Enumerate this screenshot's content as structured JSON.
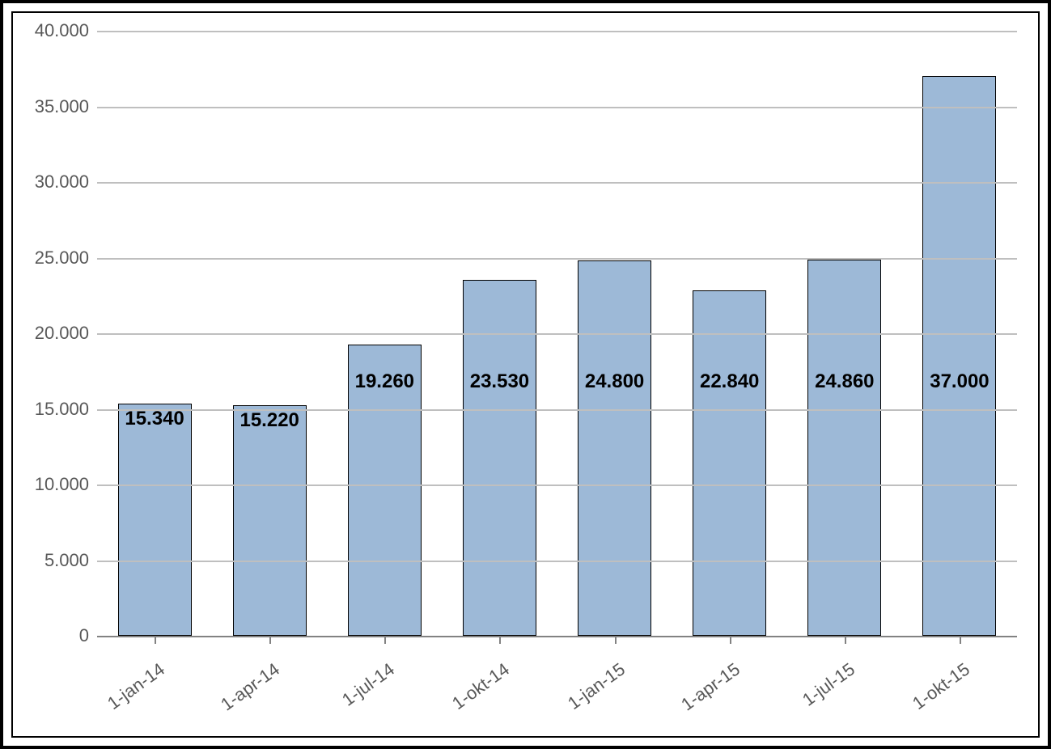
{
  "chart": {
    "type": "bar",
    "categories": [
      "1-jan-14",
      "1-apr-14",
      "1-jul-14",
      "1-okt-14",
      "1-jan-15",
      "1-apr-15",
      "1-jul-15",
      "1-okt-15"
    ],
    "values": [
      15340,
      15220,
      19260,
      23530,
      24800,
      22840,
      24860,
      37000
    ],
    "value_labels": [
      "15.340",
      "15.220",
      "19.260",
      "23.530",
      "24.800",
      "22.840",
      "24.860",
      "37.000"
    ],
    "bar_color": "#9db9d7",
    "bar_border_color": "#000000",
    "bar_border_width": 1,
    "bar_width_ratio": 0.64,
    "ylim": [
      0,
      40000
    ],
    "ytick_step": 5000,
    "ytick_labels": [
      "0",
      "5.000",
      "10.000",
      "15.000",
      "20.000",
      "25.000",
      "30.000",
      "35.000",
      "40.000"
    ],
    "background_color": "#ffffff",
    "grid_color": "#bfbfbf",
    "axis_color": "#828282",
    "tick_font_size": 22,
    "tick_color": "#595959",
    "xlabel_font_size": 22,
    "bar_label_font_size": 24,
    "bar_label_color": "#000000",
    "xlabel_rotation_deg": -36,
    "outer_border_color": "#000000"
  }
}
